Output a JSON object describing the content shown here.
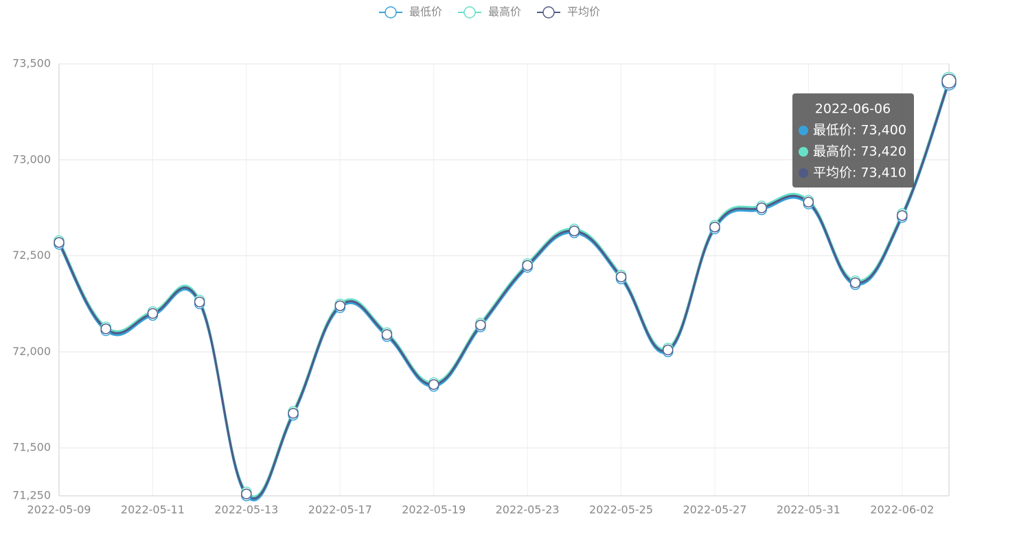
{
  "chart_data": {
    "type": "line",
    "categories": [
      "2022-05-09",
      null,
      "2022-05-11",
      null,
      "2022-05-13",
      null,
      "2022-05-17",
      null,
      "2022-05-19",
      null,
      "2022-05-23",
      null,
      "2022-05-25",
      null,
      "2022-05-27",
      null,
      "2022-05-31",
      null,
      "2022-06-02",
      "2022-06-06"
    ],
    "series": [
      {
        "name": "最低价",
        "color": "#37A2DA",
        "values": [
          72560,
          72110,
          72190,
          72250,
          71250,
          71670,
          72230,
          72080,
          71820,
          72130,
          72440,
          72620,
          72380,
          72000,
          72640,
          72740,
          72770,
          72350,
          72700,
          73400
        ]
      },
      {
        "name": "最高价",
        "color": "#67E0C8",
        "values": [
          72580,
          72130,
          72210,
          72270,
          71270,
          71690,
          72250,
          72100,
          71840,
          72150,
          72460,
          72640,
          72400,
          72020,
          72660,
          72760,
          72790,
          72370,
          72720,
          73420
        ]
      },
      {
        "name": "平均价",
        "color": "#505A85",
        "values": [
          72570,
          72120,
          72200,
          72260,
          71260,
          71680,
          72240,
          72090,
          71830,
          72140,
          72450,
          72630,
          72390,
          72010,
          72650,
          72750,
          72780,
          72360,
          72710,
          73410
        ]
      }
    ],
    "ylim": [
      71250,
      73500
    ],
    "yticks": [
      {
        "value": 71250,
        "label": "71,250"
      },
      {
        "value": 71500,
        "label": "71,500"
      },
      {
        "value": 72000,
        "label": "72,000"
      },
      {
        "value": 72500,
        "label": "72,500"
      },
      {
        "value": 73000,
        "label": "73,000"
      },
      {
        "value": 73500,
        "label": "73,500"
      }
    ],
    "grid": true,
    "legend": "top",
    "tooltip": {
      "rows": [
        "最低价: 73,400",
        "最高价: 73,420",
        "平均价: 73,410"
      ]
    }
  }
}
